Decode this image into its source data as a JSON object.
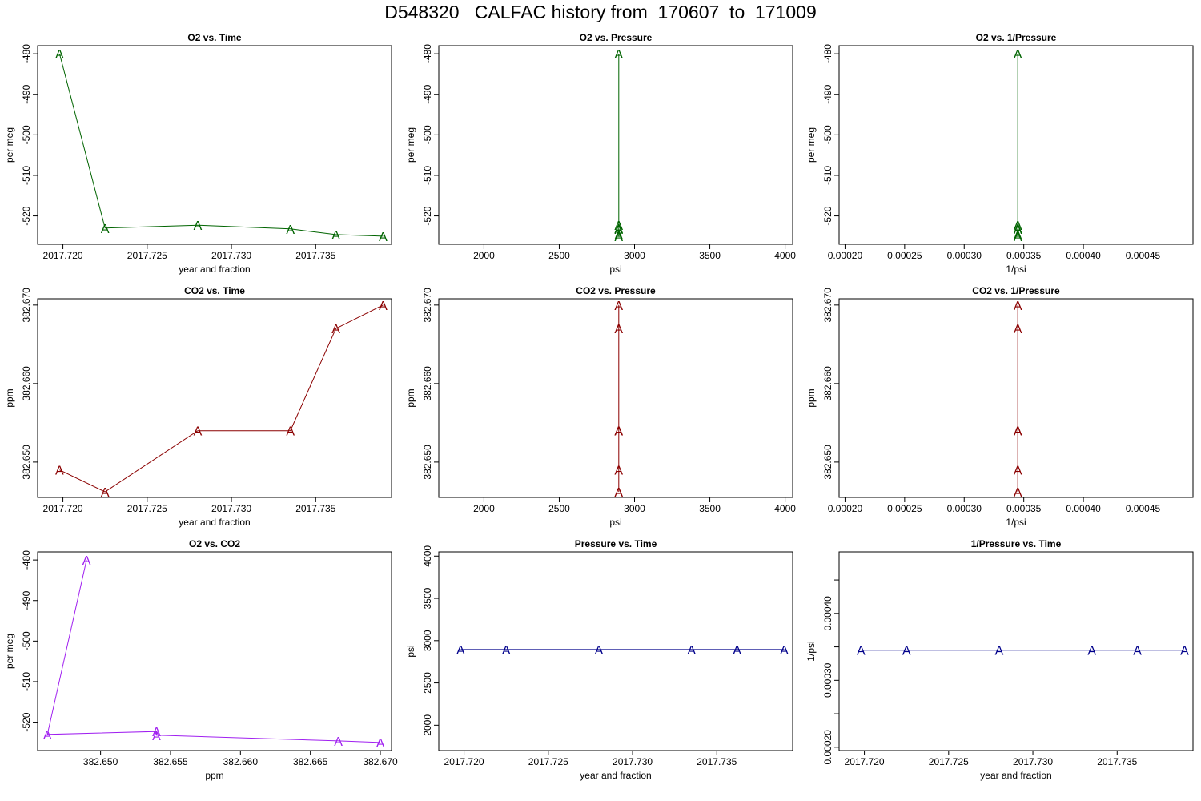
{
  "title": "D548320   CALFAC history from  170607  to  171009",
  "marker": "A",
  "colors": {
    "o2": "#006400",
    "co2": "#8b0000",
    "o2co2": "#a020f0",
    "pressure": "#00008b"
  },
  "chart_data": [
    {
      "type": "line",
      "title": "O2 vs. Time",
      "xlabel": "year and fraction",
      "ylabel": "per meg",
      "xlim": [
        2017.7185,
        2017.7395
      ],
      "ylim": [
        -527,
        -478
      ],
      "grid": false,
      "xticks": [
        2017.72,
        2017.725,
        2017.73,
        2017.735
      ],
      "xtick_labels": [
        "2017.720",
        "2017.725",
        "2017.730",
        "2017.735"
      ],
      "yticks": [
        -480,
        -490,
        -500,
        -510,
        -520
      ],
      "ytick_labels": [
        "-480",
        "-490",
        "-500",
        "-510",
        "-520"
      ],
      "x": [
        2017.7198,
        2017.7225,
        2017.728,
        2017.7335,
        2017.7362,
        2017.739
      ],
      "y": [
        -480.0,
        -523.0,
        -522.3,
        -523.2,
        -524.6,
        -525.0
      ],
      "color": "#006400"
    },
    {
      "type": "line",
      "title": "O2 vs. Pressure",
      "xlabel": "psi",
      "ylabel": "per meg",
      "xlim": [
        1700,
        4050
      ],
      "ylim": [
        -527,
        -478
      ],
      "grid": false,
      "xticks": [
        2000,
        2500,
        3000,
        3500,
        4000
      ],
      "xtick_labels": [
        "2000",
        "2500",
        "3000",
        "3500",
        "4000"
      ],
      "yticks": [
        -480,
        -490,
        -500,
        -510,
        -520
      ],
      "ytick_labels": [
        "-480",
        "-490",
        "-500",
        "-510",
        "-520"
      ],
      "x": [
        2895,
        2895,
        2895,
        2895,
        2895,
        2895
      ],
      "y": [
        -480.0,
        -523.0,
        -522.3,
        -523.2,
        -524.6,
        -525.0
      ],
      "color": "#006400"
    },
    {
      "type": "line",
      "title": "O2 vs. 1/Pressure",
      "xlabel": "1/psi",
      "ylabel": "per meg",
      "xlim": [
        0.000195,
        0.000492
      ],
      "ylim": [
        -527,
        -478
      ],
      "grid": false,
      "xticks": [
        0.0002,
        0.00025,
        0.0003,
        0.00035,
        0.0004,
        0.00045
      ],
      "xtick_labels": [
        "0.00020",
        "0.00025",
        "0.00030",
        "0.00035",
        "0.00040",
        "0.00045"
      ],
      "yticks": [
        -480,
        -490,
        -500,
        -510,
        -520
      ],
      "ytick_labels": [
        "-480",
        "-490",
        "-500",
        "-510",
        "-520"
      ],
      "x": [
        0.000345,
        0.000345,
        0.000345,
        0.000345,
        0.000345,
        0.000345
      ],
      "y": [
        -480.0,
        -523.0,
        -522.3,
        -523.2,
        -524.6,
        -525.0
      ],
      "color": "#006400"
    },
    {
      "type": "line",
      "title": "CO2 vs. Time",
      "xlabel": "year and fraction",
      "ylabel": "ppm",
      "xlim": [
        2017.7185,
        2017.7395
      ],
      "ylim": [
        382.6455,
        382.6708
      ],
      "grid": false,
      "xticks": [
        2017.72,
        2017.725,
        2017.73,
        2017.735
      ],
      "xtick_labels": [
        "2017.720",
        "2017.725",
        "2017.730",
        "2017.735"
      ],
      "yticks": [
        382.65,
        382.66,
        382.67
      ],
      "ytick_labels": [
        "382.650",
        "382.660",
        "382.670"
      ],
      "x": [
        2017.7198,
        2017.7225,
        2017.728,
        2017.7335,
        2017.7362,
        2017.739
      ],
      "y": [
        382.649,
        382.6462,
        382.654,
        382.654,
        382.667,
        382.67
      ],
      "color": "#8b0000"
    },
    {
      "type": "line",
      "title": "CO2 vs. Pressure",
      "xlabel": "psi",
      "ylabel": "ppm",
      "xlim": [
        1700,
        4050
      ],
      "ylim": [
        382.6455,
        382.6708
      ],
      "grid": false,
      "xticks": [
        2000,
        2500,
        3000,
        3500,
        4000
      ],
      "xtick_labels": [
        "2000",
        "2500",
        "3000",
        "3500",
        "4000"
      ],
      "yticks": [
        382.65,
        382.66,
        382.67
      ],
      "ytick_labels": [
        "382.650",
        "382.660",
        "382.670"
      ],
      "x": [
        2895,
        2895,
        2895,
        2895,
        2895,
        2895
      ],
      "y": [
        382.649,
        382.6462,
        382.654,
        382.654,
        382.667,
        382.67
      ],
      "color": "#8b0000"
    },
    {
      "type": "line",
      "title": "CO2 vs. 1/Pressure",
      "xlabel": "1/psi",
      "ylabel": "ppm",
      "xlim": [
        0.000195,
        0.000492
      ],
      "ylim": [
        382.6455,
        382.6708
      ],
      "grid": false,
      "xticks": [
        0.0002,
        0.00025,
        0.0003,
        0.00035,
        0.0004,
        0.00045
      ],
      "xtick_labels": [
        "0.00020",
        "0.00025",
        "0.00030",
        "0.00035",
        "0.00040",
        "0.00045"
      ],
      "yticks": [
        382.65,
        382.66,
        382.67
      ],
      "ytick_labels": [
        "382.650",
        "382.660",
        "382.670"
      ],
      "x": [
        0.000345,
        0.000345,
        0.000345,
        0.000345,
        0.000345,
        0.000345
      ],
      "y": [
        382.649,
        382.6462,
        382.654,
        382.654,
        382.667,
        382.67
      ],
      "color": "#8b0000"
    },
    {
      "type": "line",
      "title": "O2 vs. CO2",
      "xlabel": "ppm",
      "ylabel": "per meg",
      "xlim": [
        382.6455,
        382.6708
      ],
      "ylim": [
        -527,
        -478
      ],
      "grid": false,
      "xticks": [
        382.65,
        382.655,
        382.66,
        382.665,
        382.67
      ],
      "xtick_labels": [
        "382.650",
        "382.655",
        "382.660",
        "382.665",
        "382.670"
      ],
      "yticks": [
        -480,
        -490,
        -500,
        -510,
        -520
      ],
      "ytick_labels": [
        "-480",
        "-490",
        "-500",
        "-510",
        "-520"
      ],
      "x": [
        382.649,
        382.6462,
        382.654,
        382.654,
        382.667,
        382.67
      ],
      "y": [
        -480.0,
        -523.0,
        -522.3,
        -523.2,
        -524.6,
        -525.0
      ],
      "color": "#a020f0"
    },
    {
      "type": "line",
      "title": "Pressure vs. Time",
      "xlabel": "year and fraction",
      "ylabel": "psi",
      "xlim": [
        2017.7185,
        2017.7395
      ],
      "ylim": [
        1700,
        4050
      ],
      "grid": false,
      "xticks": [
        2017.72,
        2017.725,
        2017.73,
        2017.735
      ],
      "xtick_labels": [
        "2017.720",
        "2017.725",
        "2017.730",
        "2017.735"
      ],
      "yticks": [
        2000,
        2500,
        3000,
        3500,
        4000
      ],
      "ytick_labels": [
        "2000",
        "2500",
        "3000",
        "3500",
        "4000"
      ],
      "x": [
        2017.7198,
        2017.7225,
        2017.728,
        2017.7335,
        2017.7362,
        2017.739
      ],
      "y": [
        2895,
        2895,
        2895,
        2895,
        2895,
        2895
      ],
      "color": "#00008b"
    },
    {
      "type": "line",
      "title": "1/Pressure vs. Time",
      "xlabel": "year and fraction",
      "ylabel": "1/psi",
      "xlim": [
        2017.7185,
        2017.7395
      ],
      "ylim": [
        0.000195,
        0.000492
      ],
      "grid": false,
      "xticks": [
        2017.72,
        2017.725,
        2017.73,
        2017.735
      ],
      "xtick_labels": [
        "2017.720",
        "2017.725",
        "2017.730",
        "2017.735"
      ],
      "yticks": [
        0.0002,
        0.00025,
        0.0003,
        0.00035,
        0.0004,
        0.00045
      ],
      "ytick_labels": [
        "0.00020",
        "",
        "0.00030",
        "",
        "0.00040",
        ""
      ],
      "x": [
        2017.7198,
        2017.7225,
        2017.728,
        2017.7335,
        2017.7362,
        2017.739
      ],
      "y": [
        0.000345,
        0.000345,
        0.000345,
        0.000345,
        0.000345,
        0.000345
      ],
      "color": "#00008b"
    }
  ]
}
